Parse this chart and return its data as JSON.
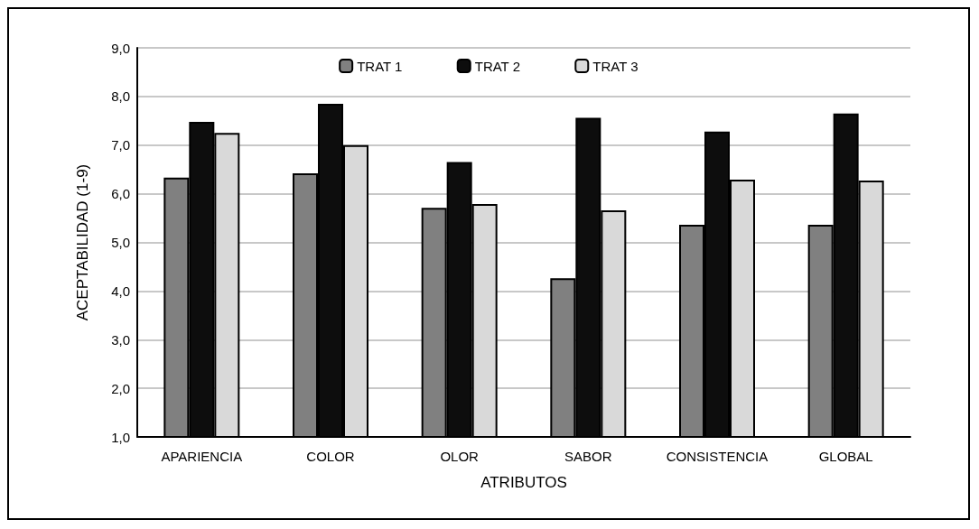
{
  "chart_data": {
    "type": "bar",
    "xlabel": "ATRIBUTOS",
    "ylabel": "ACEPTABILIDAD (1-9)",
    "categories": [
      "APARIENCIA",
      "COLOR",
      "OLOR",
      "SABOR",
      "CONSISTENCIA",
      "GLOBAL"
    ],
    "series": [
      {
        "name": "TRAT 1",
        "color": "#808080",
        "values": [
          6.33,
          6.42,
          5.71,
          4.26,
          5.36,
          5.36
        ]
      },
      {
        "name": "TRAT 2",
        "color": "#0d0d0d",
        "values": [
          7.48,
          7.85,
          6.65,
          7.56,
          7.28,
          7.65
        ]
      },
      {
        "name": "TRAT 3",
        "color": "#d9d9d9",
        "values": [
          7.25,
          7.0,
          5.79,
          5.66,
          6.29,
          6.27
        ]
      }
    ],
    "ylim": [
      1,
      9
    ],
    "yticks": [
      {
        "value": 1,
        "label": "1,0"
      },
      {
        "value": 2,
        "label": "2,0"
      },
      {
        "value": 3,
        "label": "3,0"
      },
      {
        "value": 4,
        "label": "4,0"
      },
      {
        "value": 5,
        "label": "5,0"
      },
      {
        "value": 6,
        "label": "6,0"
      },
      {
        "value": 7,
        "label": "7,0"
      },
      {
        "value": 8,
        "label": "8,0"
      },
      {
        "value": 9,
        "label": "9,0"
      }
    ],
    "grid": "y",
    "legend": "top"
  }
}
